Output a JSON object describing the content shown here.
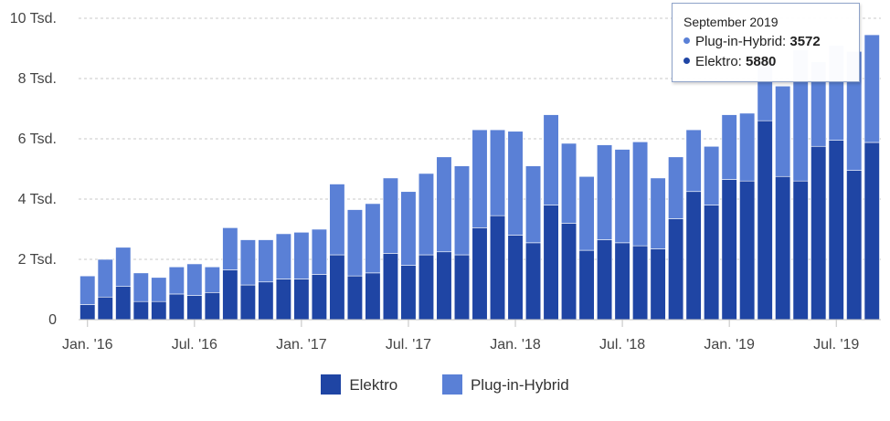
{
  "chart_data": {
    "type": "bar",
    "stacked": true,
    "title": "",
    "xlabel": "",
    "ylabel": "",
    "ylim": [
      0,
      10000
    ],
    "yticks": [
      0,
      2000,
      4000,
      6000,
      8000,
      10000
    ],
    "ytick_labels": [
      "0",
      "2 Tsd.",
      "4 Tsd.",
      "6 Tsd.",
      "8 Tsd.",
      "10 Tsd."
    ],
    "grid": true,
    "legend_position": "bottom",
    "categories": [
      "2016-01",
      "2016-02",
      "2016-03",
      "2016-04",
      "2016-05",
      "2016-06",
      "2016-07",
      "2016-08",
      "2016-09",
      "2016-10",
      "2016-11",
      "2016-12",
      "2017-01",
      "2017-02",
      "2017-03",
      "2017-04",
      "2017-05",
      "2017-06",
      "2017-07",
      "2017-08",
      "2017-09",
      "2017-10",
      "2017-11",
      "2017-12",
      "2018-01",
      "2018-02",
      "2018-03",
      "2018-04",
      "2018-05",
      "2018-06",
      "2018-07",
      "2018-08",
      "2018-09",
      "2018-10",
      "2018-11",
      "2018-12",
      "2019-01",
      "2019-02",
      "2019-03",
      "2019-04",
      "2019-05",
      "2019-06",
      "2019-07",
      "2019-08",
      "2019-09"
    ],
    "xtick_labels": [
      {
        "index": 0,
        "label": "Jan. '16"
      },
      {
        "index": 6,
        "label": "Jul. '16"
      },
      {
        "index": 12,
        "label": "Jan. '17"
      },
      {
        "index": 18,
        "label": "Jul. '17"
      },
      {
        "index": 24,
        "label": "Jan. '18"
      },
      {
        "index": 30,
        "label": "Jul. '18"
      },
      {
        "index": 36,
        "label": "Jan. '19"
      },
      {
        "index": 42,
        "label": "Jul. '19"
      }
    ],
    "series": [
      {
        "name": "Elektro",
        "color": "#1f45a4",
        "values": [
          500,
          750,
          1100,
          600,
          600,
          850,
          800,
          900,
          1650,
          1150,
          1250,
          1350,
          1350,
          1500,
          2150,
          1450,
          1550,
          2200,
          1800,
          2150,
          2250,
          2150,
          3050,
          3450,
          2800,
          2550,
          3800,
          3200,
          2300,
          2650,
          2550,
          2450,
          2350,
          3350,
          4250,
          3800,
          4650,
          4600,
          6600,
          4750,
          4600,
          5750,
          5950,
          4950,
          5880
        ]
      },
      {
        "name": "Plug-in-Hybrid",
        "color": "#5a80d6",
        "values": [
          950,
          1250,
          1300,
          950,
          800,
          900,
          1050,
          850,
          1400,
          1500,
          1400,
          1500,
          1550,
          1500,
          2350,
          2200,
          2300,
          2500,
          2450,
          2700,
          3150,
          2950,
          3250,
          2850,
          3450,
          2550,
          3000,
          2650,
          2450,
          3150,
          3100,
          3450,
          2350,
          2050,
          2050,
          1950,
          2150,
          2250,
          2000,
          3000,
          4350,
          2800,
          3150,
          3950,
          3572
        ]
      }
    ]
  },
  "tooltip": {
    "title": "September 2019",
    "phev_label": "Plug-in-Hybrid:",
    "phev_value": "3572",
    "ev_label": "Elektro:",
    "ev_value": "5880"
  },
  "legend": {
    "elektro": "Elektro",
    "phev": "Plug-in-Hybrid"
  }
}
